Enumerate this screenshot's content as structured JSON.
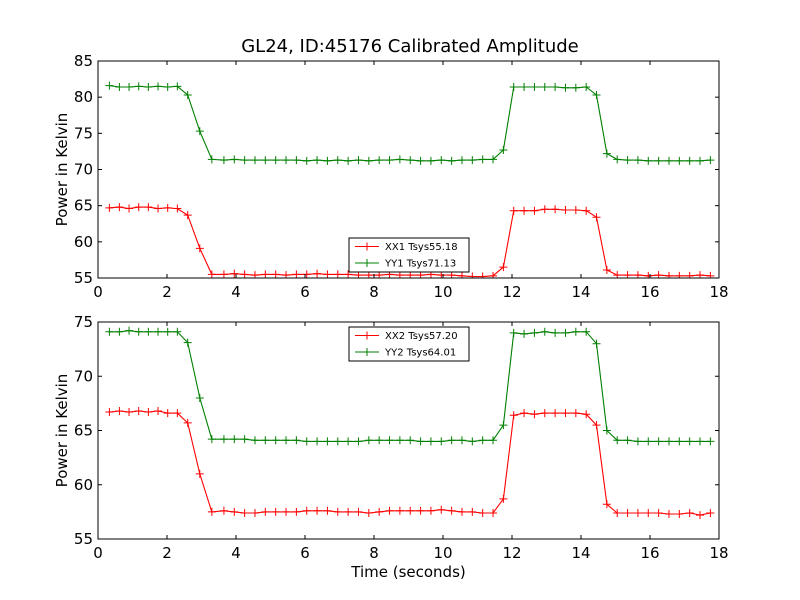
{
  "figure": {
    "title": "GL24, ID:45176 Calibrated Amplitude",
    "background": "#ffffff"
  },
  "chart_data": [
    {
      "type": "line",
      "title": "GL24, ID:45176 Calibrated Amplitude",
      "xlabel": "",
      "ylabel": "Power in Kelvin",
      "xlim": [
        0,
        18
      ],
      "ylim": [
        55,
        85
      ],
      "xticks": [
        0,
        2,
        4,
        6,
        8,
        10,
        12,
        14,
        16,
        18
      ],
      "yticks": [
        55,
        60,
        65,
        70,
        75,
        80,
        85
      ],
      "marker": "+",
      "legend_placement": "lower-center",
      "grid": false,
      "series": [
        {
          "name": "XX1 Tsys55.18",
          "color": "#ff0000",
          "points": [
            [
              0.33,
              64.7
            ],
            [
              0.62,
              64.8
            ],
            [
              0.9,
              64.6
            ],
            [
              1.18,
              64.8
            ],
            [
              1.46,
              64.8
            ],
            [
              1.74,
              64.6
            ],
            [
              2.02,
              64.7
            ],
            [
              2.3,
              64.6
            ],
            [
              2.6,
              63.7
            ],
            [
              2.95,
              59.1
            ],
            [
              3.3,
              55.5
            ],
            [
              3.65,
              55.5
            ],
            [
              3.95,
              55.6
            ],
            [
              4.25,
              55.5
            ],
            [
              4.55,
              55.4
            ],
            [
              4.85,
              55.5
            ],
            [
              5.15,
              55.5
            ],
            [
              5.45,
              55.4
            ],
            [
              5.75,
              55.5
            ],
            [
              6.05,
              55.5
            ],
            [
              6.35,
              55.6
            ],
            [
              6.65,
              55.5
            ],
            [
              6.95,
              55.5
            ],
            [
              7.25,
              55.5
            ],
            [
              7.55,
              55.4
            ],
            [
              7.85,
              55.4
            ],
            [
              8.15,
              55.4
            ],
            [
              8.45,
              55.5
            ],
            [
              8.75,
              55.4
            ],
            [
              9.05,
              55.4
            ],
            [
              9.35,
              55.4
            ],
            [
              9.65,
              55.5
            ],
            [
              9.95,
              55.4
            ],
            [
              10.25,
              55.4
            ],
            [
              10.55,
              55.3
            ],
            [
              10.85,
              55.2
            ],
            [
              11.15,
              55.2
            ],
            [
              11.45,
              55.3
            ],
            [
              11.75,
              56.5
            ],
            [
              12.05,
              64.3
            ],
            [
              12.35,
              64.3
            ],
            [
              12.65,
              64.3
            ],
            [
              12.95,
              64.5
            ],
            [
              13.25,
              64.5
            ],
            [
              13.55,
              64.4
            ],
            [
              13.85,
              64.4
            ],
            [
              14.15,
              64.3
            ],
            [
              14.45,
              63.4
            ],
            [
              14.75,
              56.1
            ],
            [
              15.05,
              55.4
            ],
            [
              15.35,
              55.4
            ],
            [
              15.65,
              55.4
            ],
            [
              15.95,
              55.3
            ],
            [
              16.25,
              55.4
            ],
            [
              16.55,
              55.3
            ],
            [
              16.85,
              55.3
            ],
            [
              17.15,
              55.3
            ],
            [
              17.45,
              55.4
            ],
            [
              17.75,
              55.3
            ]
          ]
        },
        {
          "name": "YY1 Tsys71.13",
          "color": "#008000",
          "points": [
            [
              0.33,
              81.6
            ],
            [
              0.62,
              81.4
            ],
            [
              0.9,
              81.4
            ],
            [
              1.18,
              81.5
            ],
            [
              1.46,
              81.4
            ],
            [
              1.74,
              81.5
            ],
            [
              2.02,
              81.4
            ],
            [
              2.3,
              81.5
            ],
            [
              2.6,
              80.3
            ],
            [
              2.95,
              75.3
            ],
            [
              3.3,
              71.4
            ],
            [
              3.65,
              71.3
            ],
            [
              3.95,
              71.4
            ],
            [
              4.25,
              71.3
            ],
            [
              4.55,
              71.3
            ],
            [
              4.85,
              71.3
            ],
            [
              5.15,
              71.3
            ],
            [
              5.45,
              71.3
            ],
            [
              5.75,
              71.3
            ],
            [
              6.05,
              71.2
            ],
            [
              6.35,
              71.3
            ],
            [
              6.65,
              71.2
            ],
            [
              6.95,
              71.3
            ],
            [
              7.25,
              71.2
            ],
            [
              7.55,
              71.3
            ],
            [
              7.85,
              71.2
            ],
            [
              8.15,
              71.3
            ],
            [
              8.45,
              71.3
            ],
            [
              8.75,
              71.4
            ],
            [
              9.05,
              71.3
            ],
            [
              9.35,
              71.2
            ],
            [
              9.65,
              71.2
            ],
            [
              9.95,
              71.3
            ],
            [
              10.25,
              71.2
            ],
            [
              10.55,
              71.3
            ],
            [
              10.85,
              71.3
            ],
            [
              11.15,
              71.4
            ],
            [
              11.45,
              71.4
            ],
            [
              11.75,
              72.7
            ],
            [
              12.05,
              81.4
            ],
            [
              12.35,
              81.4
            ],
            [
              12.65,
              81.4
            ],
            [
              12.95,
              81.4
            ],
            [
              13.25,
              81.4
            ],
            [
              13.55,
              81.3
            ],
            [
              13.85,
              81.3
            ],
            [
              14.15,
              81.4
            ],
            [
              14.45,
              80.3
            ],
            [
              14.75,
              72.2
            ],
            [
              15.05,
              71.4
            ],
            [
              15.35,
              71.3
            ],
            [
              15.65,
              71.3
            ],
            [
              15.95,
              71.2
            ],
            [
              16.25,
              71.2
            ],
            [
              16.55,
              71.2
            ],
            [
              16.85,
              71.2
            ],
            [
              17.15,
              71.2
            ],
            [
              17.45,
              71.2
            ],
            [
              17.75,
              71.3
            ]
          ]
        }
      ]
    },
    {
      "type": "line",
      "title": "",
      "xlabel": "Time (seconds)",
      "ylabel": "Power in Kelvin",
      "xlim": [
        0,
        18
      ],
      "ylim": [
        55,
        75
      ],
      "xticks": [
        0,
        2,
        4,
        6,
        8,
        10,
        12,
        14,
        16,
        18
      ],
      "yticks": [
        55,
        60,
        65,
        70,
        75
      ],
      "marker": "+",
      "legend_placement": "upper-center",
      "grid": false,
      "series": [
        {
          "name": "XX2 Tsys57.20",
          "color": "#ff0000",
          "points": [
            [
              0.33,
              66.7
            ],
            [
              0.62,
              66.8
            ],
            [
              0.9,
              66.7
            ],
            [
              1.18,
              66.8
            ],
            [
              1.46,
              66.7
            ],
            [
              1.74,
              66.8
            ],
            [
              2.02,
              66.6
            ],
            [
              2.3,
              66.6
            ],
            [
              2.6,
              65.7
            ],
            [
              2.95,
              61.0
            ],
            [
              3.3,
              57.5
            ],
            [
              3.65,
              57.6
            ],
            [
              3.95,
              57.5
            ],
            [
              4.25,
              57.4
            ],
            [
              4.55,
              57.4
            ],
            [
              4.85,
              57.5
            ],
            [
              5.15,
              57.5
            ],
            [
              5.45,
              57.5
            ],
            [
              5.75,
              57.5
            ],
            [
              6.05,
              57.6
            ],
            [
              6.35,
              57.6
            ],
            [
              6.65,
              57.6
            ],
            [
              6.95,
              57.5
            ],
            [
              7.25,
              57.5
            ],
            [
              7.55,
              57.5
            ],
            [
              7.85,
              57.4
            ],
            [
              8.15,
              57.5
            ],
            [
              8.45,
              57.6
            ],
            [
              8.75,
              57.6
            ],
            [
              9.05,
              57.6
            ],
            [
              9.35,
              57.6
            ],
            [
              9.65,
              57.6
            ],
            [
              9.95,
              57.7
            ],
            [
              10.25,
              57.6
            ],
            [
              10.55,
              57.5
            ],
            [
              10.85,
              57.5
            ],
            [
              11.15,
              57.4
            ],
            [
              11.45,
              57.4
            ],
            [
              11.75,
              58.7
            ],
            [
              12.05,
              66.4
            ],
            [
              12.35,
              66.6
            ],
            [
              12.65,
              66.5
            ],
            [
              12.95,
              66.6
            ],
            [
              13.25,
              66.6
            ],
            [
              13.55,
              66.6
            ],
            [
              13.85,
              66.6
            ],
            [
              14.15,
              66.5
            ],
            [
              14.45,
              65.5
            ],
            [
              14.75,
              58.2
            ],
            [
              15.05,
              57.4
            ],
            [
              15.35,
              57.4
            ],
            [
              15.65,
              57.4
            ],
            [
              15.95,
              57.4
            ],
            [
              16.25,
              57.4
            ],
            [
              16.55,
              57.3
            ],
            [
              16.85,
              57.3
            ],
            [
              17.15,
              57.4
            ],
            [
              17.45,
              57.2
            ],
            [
              17.75,
              57.4
            ]
          ]
        },
        {
          "name": "YY2 Tsys64.01",
          "color": "#008000",
          "points": [
            [
              0.33,
              74.1
            ],
            [
              0.62,
              74.1
            ],
            [
              0.9,
              74.2
            ],
            [
              1.18,
              74.1
            ],
            [
              1.46,
              74.1
            ],
            [
              1.74,
              74.1
            ],
            [
              2.02,
              74.1
            ],
            [
              2.3,
              74.1
            ],
            [
              2.6,
              73.1
            ],
            [
              2.95,
              68.0
            ],
            [
              3.3,
              64.2
            ],
            [
              3.65,
              64.2
            ],
            [
              3.95,
              64.2
            ],
            [
              4.25,
              64.2
            ],
            [
              4.55,
              64.1
            ],
            [
              4.85,
              64.1
            ],
            [
              5.15,
              64.1
            ],
            [
              5.45,
              64.1
            ],
            [
              5.75,
              64.1
            ],
            [
              6.05,
              64.0
            ],
            [
              6.35,
              64.0
            ],
            [
              6.65,
              64.0
            ],
            [
              6.95,
              64.0
            ],
            [
              7.25,
              64.0
            ],
            [
              7.55,
              64.0
            ],
            [
              7.85,
              64.1
            ],
            [
              8.15,
              64.1
            ],
            [
              8.45,
              64.1
            ],
            [
              8.75,
              64.1
            ],
            [
              9.05,
              64.1
            ],
            [
              9.35,
              64.0
            ],
            [
              9.65,
              64.0
            ],
            [
              9.95,
              64.0
            ],
            [
              10.25,
              64.1
            ],
            [
              10.55,
              64.1
            ],
            [
              10.85,
              64.0
            ],
            [
              11.15,
              64.1
            ],
            [
              11.45,
              64.1
            ],
            [
              11.75,
              65.5
            ],
            [
              12.05,
              74.0
            ],
            [
              12.35,
              73.9
            ],
            [
              12.65,
              74.0
            ],
            [
              12.95,
              74.1
            ],
            [
              13.25,
              74.0
            ],
            [
              13.55,
              74.0
            ],
            [
              13.85,
              74.1
            ],
            [
              14.15,
              74.1
            ],
            [
              14.45,
              73.0
            ],
            [
              14.75,
              65.0
            ],
            [
              15.05,
              64.1
            ],
            [
              15.35,
              64.1
            ],
            [
              15.65,
              64.0
            ],
            [
              15.95,
              64.0
            ],
            [
              16.25,
              64.0
            ],
            [
              16.55,
              64.0
            ],
            [
              16.85,
              64.0
            ],
            [
              17.15,
              64.0
            ],
            [
              17.45,
              64.0
            ],
            [
              17.75,
              64.0
            ]
          ]
        }
      ]
    }
  ]
}
